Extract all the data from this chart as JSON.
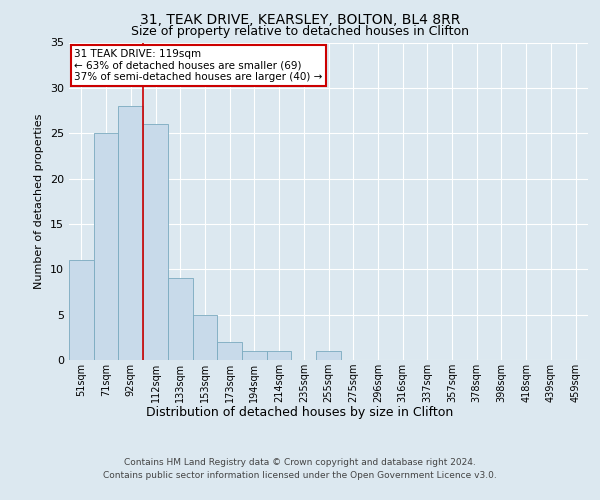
{
  "title_line1": "31, TEAK DRIVE, KEARSLEY, BOLTON, BL4 8RR",
  "title_line2": "Size of property relative to detached houses in Clifton",
  "xlabel": "Distribution of detached houses by size in Clifton",
  "ylabel": "Number of detached properties",
  "categories": [
    "51sqm",
    "71sqm",
    "92sqm",
    "112sqm",
    "133sqm",
    "153sqm",
    "173sqm",
    "194sqm",
    "214sqm",
    "235sqm",
    "255sqm",
    "275sqm",
    "296sqm",
    "316sqm",
    "337sqm",
    "357sqm",
    "378sqm",
    "398sqm",
    "418sqm",
    "439sqm",
    "459sqm"
  ],
  "values": [
    11,
    25,
    28,
    26,
    9,
    5,
    2,
    1,
    1,
    0,
    1,
    0,
    0,
    0,
    0,
    0,
    0,
    0,
    0,
    0,
    0
  ],
  "bar_color": "#c8daea",
  "bar_edgecolor": "#7aaabf",
  "bar_linewidth": 0.6,
  "ylim": [
    0,
    35
  ],
  "yticks": [
    0,
    5,
    10,
    15,
    20,
    25,
    30,
    35
  ],
  "annotation_text": "31 TEAK DRIVE: 119sqm\n← 63% of detached houses are smaller (69)\n37% of semi-detached houses are larger (40) →",
  "annotation_box_facecolor": "#ffffff",
  "annotation_box_edgecolor": "#cc0000",
  "footer_line1": "Contains HM Land Registry data © Crown copyright and database right 2024.",
  "footer_line2": "Contains public sector information licensed under the Open Government Licence v3.0.",
  "bg_color": "#dce8f0",
  "plot_bg_color": "#dce8f0",
  "grid_color": "#ffffff",
  "vline_color": "#cc0000",
  "vline_x": 3.0,
  "title_fontsize1": 10,
  "title_fontsize2": 9,
  "ylabel_fontsize": 8,
  "xlabel_fontsize": 9,
  "tick_fontsize": 7,
  "footer_fontsize": 6.5
}
